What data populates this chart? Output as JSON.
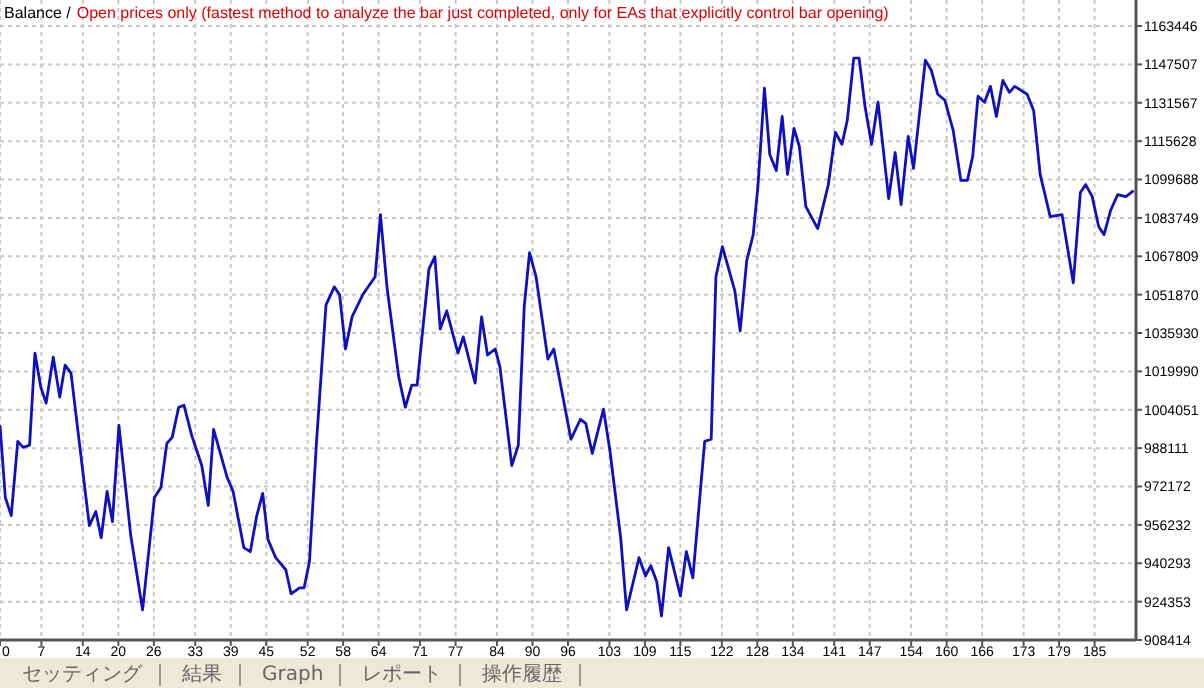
{
  "chart_data": {
    "type": "line",
    "title": "Balance /",
    "subtitle": "Open prices only (fastest method to analyze the bar just completed, only for EAs that explicitly control bar opening)",
    "x": [
      0,
      0.9,
      1.9,
      3.0,
      3.9,
      5.0,
      5.9,
      6.9,
      7.8,
      9.0,
      10.1,
      11.0,
      12.0,
      15.1,
      16.2,
      17.1,
      18.1,
      19.0,
      20.1,
      22.1,
      24.1,
      26.1,
      27.2,
      28.2,
      29.1,
      30.2,
      31.1,
      32.4,
      34.1,
      35.2,
      36.1,
      38.4,
      39.4,
      41.2,
      42.3,
      43.4,
      44.4,
      45.3,
      46.6,
      48.3,
      49.2,
      50.6,
      51.4,
      52.3,
      53.5,
      55.1,
      56.5,
      57.4,
      58.4,
      59.5,
      61.3,
      63.4,
      64.3,
      65.4,
      67.4,
      68.5,
      69.6,
      70.5,
      72.5,
      73.5,
      74.4,
      75.5,
      77.4,
      78.3,
      80.3,
      81.4,
      82.4,
      83.7,
      84.5,
      86.5,
      87.6,
      88.6,
      89.5,
      90.6,
      92.6,
      93.6,
      96.5,
      98.1,
      99.0,
      100.1,
      102.0,
      103.1,
      104.9,
      105.9,
      108.0,
      109.1,
      110.0,
      111.0,
      111.8,
      113.0,
      115.0,
      116.0,
      117.1,
      119.1,
      120.2,
      121.0,
      122.1,
      124.2,
      125.1,
      126.2,
      127.3,
      128.1,
      129.2,
      130.1,
      131.2,
      132.2,
      133.1,
      134.2,
      135.1,
      136.2,
      138.2,
      140.0,
      141.2,
      142.3,
      143.2,
      144.3,
      145.2,
      146.2,
      147.3,
      148.4,
      150.2,
      151.3,
      152.3,
      153.5,
      154.4,
      156.4,
      157.4,
      158.5,
      159.7,
      161.1,
      162.4,
      163.5,
      164.4,
      165.3,
      166.4,
      167.4,
      168.4,
      169.5,
      170.6,
      171.5,
      173.6,
      174.7,
      175.8,
      177.5,
      179.5,
      181.4,
      182.6,
      183.5,
      184.6,
      185.7,
      186.6,
      187.7,
      188.9,
      190.3,
      191.6
    ],
    "series": [
      {
        "color": "#1010c0",
        "values": [
          997600,
          967600,
          960100,
          990900,
          988400,
          989300,
          1027600,
          1013400,
          1006800,
          1025900,
          1009300,
          1022600,
          1019300,
          955900,
          961800,
          950900,
          970100,
          957600,
          997600,
          951800,
          920900,
          967600,
          971800,
          990100,
          992600,
          1005100,
          1005900,
          993400,
          980900,
          964300,
          995900,
          975900,
          970100,
          946800,
          945100,
          960100,
          969300,
          950100,
          942600,
          937600,
          927600,
          930100,
          930100,
          940900,
          990900,
          1047600,
          1055100,
          1051800,
          1029300,
          1042600,
          1051800,
          1059300,
          1085100,
          1055100,
          1017600,
          1005100,
          1014300,
          1014300,
          1062600,
          1067600,
          1037600,
          1045100,
          1027600,
          1034300,
          1015100,
          1042600,
          1026800,
          1029300,
          1021800,
          980900,
          989300,
          1046800,
          1069300,
          1059300,
          1025100,
          1029300,
          991800,
          1000100,
          998400,
          985900,
          1004300,
          986800,
          950900,
          920900,
          942600,
          935100,
          939300,
          932600,
          918400,
          946800,
          926700,
          945100,
          934200,
          990900,
          991800,
          1059300,
          1071800,
          1053400,
          1036800,
          1065900,
          1076800,
          1096800,
          1137600,
          1110100,
          1103400,
          1125900,
          1101800,
          1120900,
          1113400,
          1088400,
          1079300,
          1097600,
          1119300,
          1114300,
          1124300,
          1150100,
          1150100,
          1130100,
          1114300,
          1131800,
          1091800,
          1110900,
          1089300,
          1117600,
          1104300,
          1149300,
          1145100,
          1135100,
          1132600,
          1120100,
          1099300,
          1099300,
          1109300,
          1134300,
          1131800,
          1138400,
          1125900,
          1140900,
          1135900,
          1138400,
          1135100,
          1128400,
          1101800,
          1084300,
          1085100,
          1056800,
          1094300,
          1097600,
          1092600,
          1080100,
          1076800,
          1086800,
          1093400,
          1092600,
          1095100
        ]
      }
    ],
    "xlim": [
      0,
      192
    ],
    "ylim": [
      908414,
      1174260
    ],
    "xticks": [
      0,
      7,
      14,
      20,
      26,
      33,
      39,
      45,
      52,
      58,
      64,
      71,
      77,
      84,
      90,
      96,
      103,
      109,
      115,
      122,
      128,
      134,
      141,
      147,
      154,
      160,
      166,
      173,
      179,
      185
    ],
    "yticks": [
      908414,
      924353,
      940293,
      956232,
      972172,
      988111,
      1004051,
      1019990,
      1035930,
      1051870,
      1067809,
      1083749,
      1099688,
      1115628,
      1131567,
      1147507,
      1163446
    ],
    "grid": true,
    "marker": "none",
    "line_style": "solid",
    "annotations": [
      "セッティング",
      "結果",
      "Graph",
      "レポート",
      "操作履歴"
    ]
  }
}
